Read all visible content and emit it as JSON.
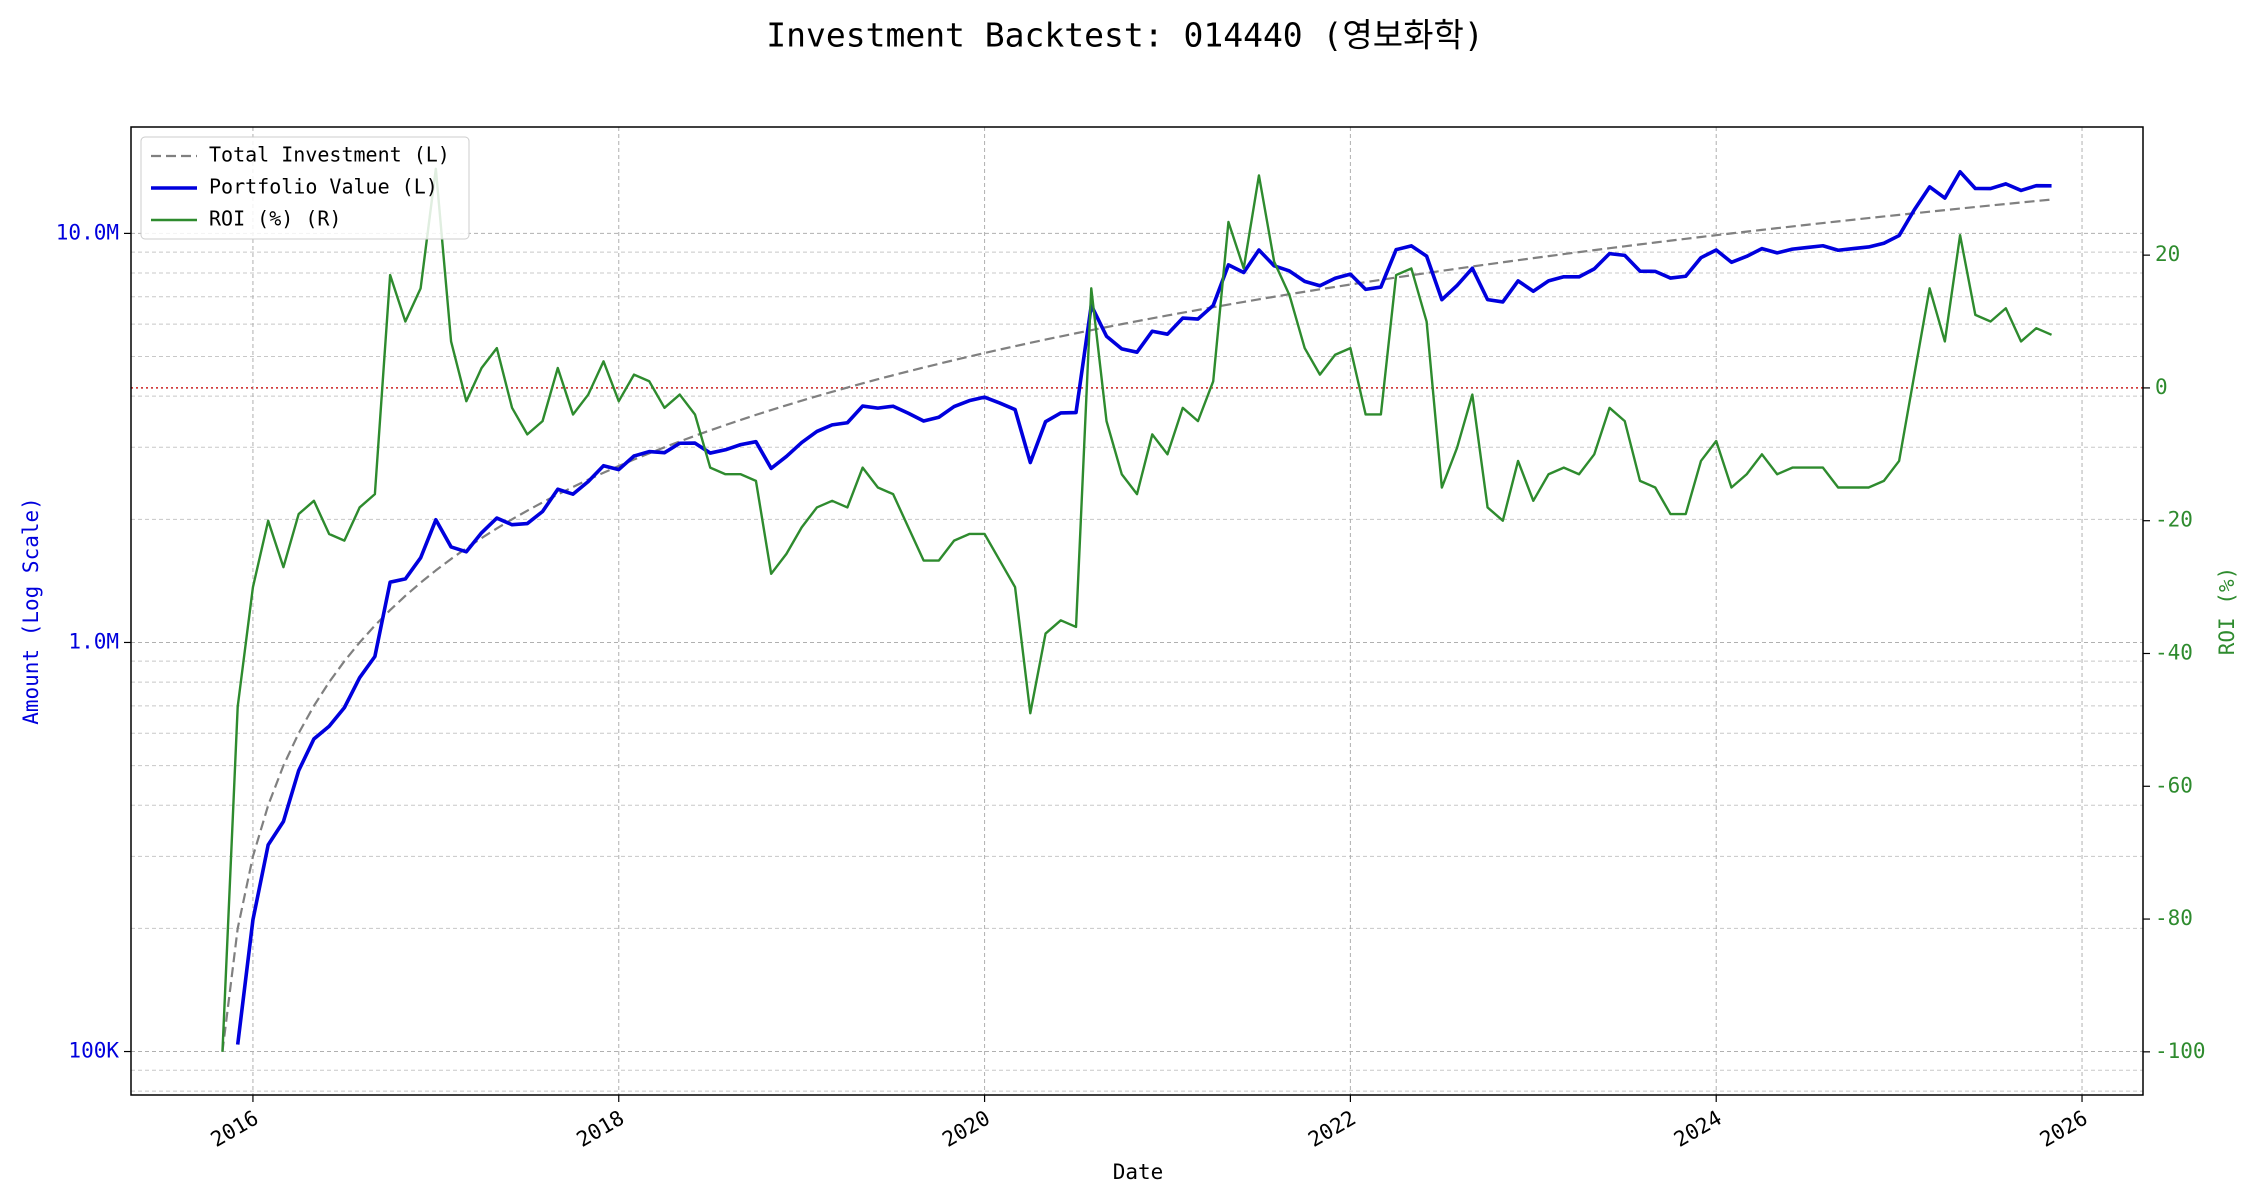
{
  "chart_data": {
    "type": "line",
    "title": "Investment Backtest: 014440 (영보화학)",
    "xlabel": "Date",
    "ylabel": "Amount (Log Scale)",
    "y2label": "ROI (%)",
    "log_scale": true,
    "grid": true,
    "legend": "upper left",
    "xlim": [
      "2015-05",
      "2026-05"
    ],
    "xticks": [
      "2016",
      "2018",
      "2020",
      "2022",
      "2024",
      "2026"
    ],
    "ylim": [
      78300,
      18200000
    ],
    "yticks": [
      {
        "value": 100000,
        "label": "100K"
      },
      {
        "value": 1000000,
        "label": "1.0M"
      },
      {
        "value": 10000000,
        "label": "10.0M"
      }
    ],
    "y2lim": [
      -106.5,
      39.3
    ],
    "y2ticks": [
      -100,
      -80,
      -60,
      -40,
      -20,
      0,
      20
    ],
    "reference_line": {
      "axis": "y2",
      "value": 0,
      "color": "#cc2222"
    },
    "x": [
      "2015-11",
      "2015-12",
      "2016-01",
      "2016-02",
      "2016-03",
      "2016-04",
      "2016-05",
      "2016-06",
      "2016-07",
      "2016-08",
      "2016-09",
      "2016-10",
      "2016-11",
      "2016-12",
      "2017-01",
      "2017-02",
      "2017-03",
      "2017-04",
      "2017-05",
      "2017-06",
      "2017-07",
      "2017-08",
      "2017-09",
      "2017-10",
      "2017-11",
      "2017-12",
      "2018-01",
      "2018-02",
      "2018-03",
      "2018-04",
      "2018-05",
      "2018-06",
      "2018-07",
      "2018-08",
      "2018-09",
      "2018-10",
      "2018-11",
      "2018-12",
      "2019-01",
      "2019-02",
      "2019-03",
      "2019-04",
      "2019-05",
      "2019-06",
      "2019-07",
      "2019-08",
      "2019-09",
      "2019-10",
      "2019-11",
      "2019-12",
      "2020-01",
      "2020-02",
      "2020-03",
      "2020-04",
      "2020-05",
      "2020-06",
      "2020-07",
      "2020-08",
      "2020-09",
      "2020-10",
      "2020-11",
      "2020-12",
      "2021-01",
      "2021-02",
      "2021-03",
      "2021-04",
      "2021-05",
      "2021-06",
      "2021-07",
      "2021-08",
      "2021-09",
      "2021-10",
      "2021-11",
      "2021-12",
      "2022-01",
      "2022-02",
      "2022-03",
      "2022-04",
      "2022-05",
      "2022-06",
      "2022-07",
      "2022-08",
      "2022-09",
      "2022-10",
      "2022-11",
      "2022-12",
      "2023-01",
      "2023-02",
      "2023-03",
      "2023-04",
      "2023-05",
      "2023-06",
      "2023-07",
      "2023-08",
      "2023-09",
      "2023-10",
      "2023-11",
      "2023-12",
      "2024-01",
      "2024-02",
      "2024-03",
      "2024-04",
      "2024-05",
      "2024-06",
      "2024-07",
      "2024-08",
      "2024-09",
      "2024-10",
      "2024-11",
      "2024-12",
      "2025-01",
      "2025-02",
      "2025-03",
      "2025-04",
      "2025-05",
      "2025-06",
      "2025-07",
      "2025-08",
      "2025-09",
      "2025-10",
      "2025-11"
    ],
    "series": [
      {
        "name": "Total Investment (L)",
        "color": "#808080",
        "line_style": "dashed",
        "axis": "y",
        "values": [
          100000,
          200000,
          300000,
          400000,
          500000,
          600000,
          700000,
          800000,
          900000,
          1000000,
          1100000,
          1200000,
          1300000,
          1400000,
          1500000,
          1600000,
          1700000,
          1800000,
          1900000,
          2000000,
          2100000,
          2200000,
          2300000,
          2400000,
          2500000,
          2600000,
          2700000,
          2800000,
          2900000,
          3000000,
          3100000,
          3200000,
          3300000,
          3400000,
          3500000,
          3600000,
          3700000,
          3800000,
          3900000,
          4000000,
          4100000,
          4200000,
          4300000,
          4400000,
          4500000,
          4600000,
          4700000,
          4800000,
          4900000,
          5000000,
          5100000,
          5200000,
          5300000,
          5400000,
          5500000,
          5600000,
          5700000,
          5800000,
          5900000,
          6000000,
          6100000,
          6200000,
          6300000,
          6400000,
          6500000,
          6600000,
          6700000,
          6800000,
          6900000,
          7000000,
          7100000,
          7200000,
          7300000,
          7400000,
          7500000,
          7600000,
          7700000,
          7800000,
          7900000,
          8000000,
          8100000,
          8200000,
          8300000,
          8400000,
          8500000,
          8600000,
          8700000,
          8800000,
          8900000,
          9000000,
          9100000,
          9200000,
          9300000,
          9400000,
          9500000,
          9600000,
          9700000,
          9800000,
          9900000,
          10000000,
          10100000,
          10200000,
          10300000,
          10400000,
          10500000,
          10600000,
          10700000,
          10800000,
          10900000,
          11000000,
          11100000,
          11200000,
          11300000,
          11400000,
          11500000,
          11600000,
          11700000,
          11800000,
          11900000,
          12000000,
          12100000
        ]
      },
      {
        "name": "Portfolio Value (L)",
        "color": "#0000dd",
        "line_style": "solid",
        "axis": "y",
        "values": [
          null,
          104000,
          210000,
          320000,
          365000,
          486000,
          581000,
          624000,
          693000,
          820000,
          924000,
          1404000,
          1430000,
          1610000,
          1995000,
          1712000,
          1666000,
          1854000,
          2014000,
          1940000,
          1953000,
          2090000,
          2369000,
          2304000,
          2475000,
          2704000,
          2646000,
          2856000,
          2929000,
          2910000,
          3069000,
          3072000,
          2904000,
          2958000,
          3045000,
          3096000,
          2664000,
          2850000,
          3081000,
          3280000,
          3403000,
          3444000,
          3784000,
          3740000,
          3780000,
          3634000,
          3478000,
          3552000,
          3773000,
          3900000,
          3978000,
          3848000,
          3710000,
          2754000,
          3465000,
          3640000,
          3648000,
          6670000,
          5605000,
          5220000,
          5124000,
          5766000,
          5670000,
          6208000,
          6175000,
          6666000,
          8375000,
          8024000,
          9108000,
          8330000,
          8094000,
          7632000,
          7446000,
          7770000,
          7950000,
          7296000,
          7392000,
          9126000,
          9322000,
          8800000,
          6885000,
          7462000,
          8217000,
          6888000,
          6800000,
          7654000,
          7221000,
          7656000,
          7832000,
          7830000,
          8190000,
          8924000,
          8835000,
          8084000,
          8075000,
          7776000,
          7857000,
          8722000,
          9108000,
          8500000,
          8787000,
          9180000,
          8961000,
          9152000,
          9240000,
          9328000,
          9095000,
          9180000,
          9265000,
          9460000,
          9879000,
          11424000,
          12995000,
          12198000,
          14145000,
          12876000,
          12870000,
          13216000,
          12733000,
          13080000,
          13068000
        ]
      },
      {
        "name": "ROI (%) (R)",
        "color": "#2e8b2e",
        "line_style": "solid",
        "axis": "y2",
        "values": [
          -100,
          -48,
          -30,
          -20,
          -27,
          -19,
          -17,
          -22,
          -23,
          -18,
          -16,
          17,
          10,
          15,
          33,
          7,
          -2,
          3,
          6,
          -3,
          -7,
          -5,
          3,
          -4,
          -1,
          4,
          -2,
          2,
          1,
          -3,
          -1,
          -4,
          -12,
          -13,
          -13,
          -14,
          -28,
          -25,
          -21,
          -18,
          -17,
          -18,
          -12,
          -15,
          -16,
          -21,
          -26,
          -26,
          -23,
          -22,
          -22,
          -26,
          -30,
          -49,
          -37,
          -35,
          -36,
          15,
          -5,
          -13,
          -16,
          -7,
          -10,
          -3,
          -5,
          1,
          25,
          18,
          32,
          19,
          14,
          6,
          2,
          5,
          6,
          -4,
          -4,
          17,
          18,
          10,
          -15,
          -9,
          -1,
          -18,
          -20,
          -11,
          -17,
          -13,
          -12,
          -13,
          -10,
          -3,
          -5,
          -14,
          -15,
          -19,
          -19,
          -11,
          -8,
          -15,
          -13,
          -10,
          -13,
          -12,
          -12,
          -12,
          -15,
          -15,
          -15,
          -14,
          -11,
          2,
          15,
          7,
          23,
          11,
          10,
          12,
          7,
          9,
          8
        ]
      }
    ]
  }
}
